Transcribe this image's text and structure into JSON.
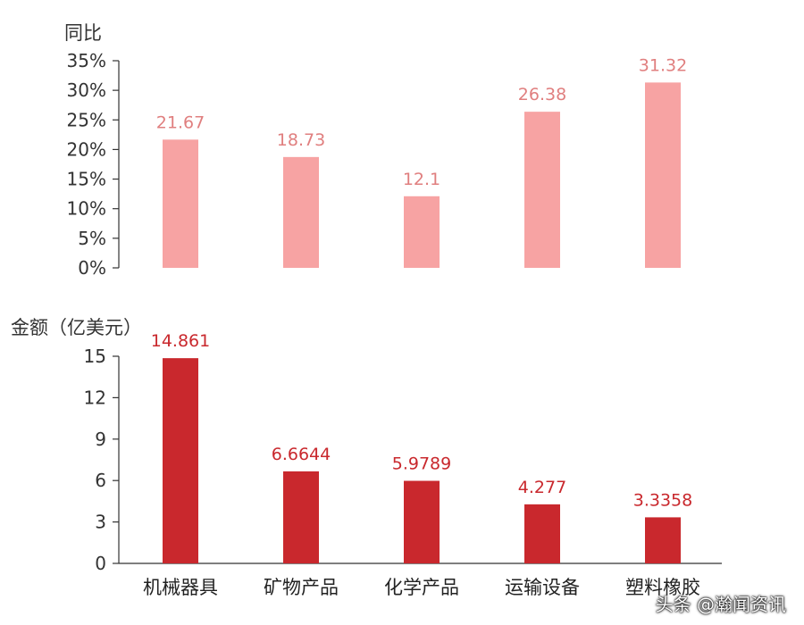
{
  "chart_data": [
    {
      "type": "bar",
      "ylabel": "同比",
      "categories": [
        "机械器具",
        "矿物产品",
        "化学产品",
        "运输设备",
        "塑料橡胶"
      ],
      "values": [
        21.67,
        18.73,
        12.1,
        26.38,
        31.32
      ],
      "value_labels": [
        "21.67",
        "18.73",
        "12.1",
        "26.38",
        "31.32"
      ],
      "ylim": [
        0,
        35
      ],
      "yticks": [
        "0%",
        "5%",
        "10%",
        "15%",
        "20%",
        "25%",
        "30%",
        "35%"
      ],
      "color": "#f7a3a3",
      "label_color": "#e07f7f",
      "grid": false
    },
    {
      "type": "bar",
      "ylabel": "金额（亿美元）",
      "categories": [
        "机械器具",
        "矿物产品",
        "化学产品",
        "运输设备",
        "塑料橡胶"
      ],
      "values": [
        14.861,
        6.6644,
        5.9789,
        4.277,
        3.3358
      ],
      "value_labels": [
        "14.861",
        "6.6644",
        "5.9789",
        "4.277",
        "3.3358"
      ],
      "ylim": [
        0,
        15
      ],
      "yticks": [
        "0",
        "3",
        "6",
        "9",
        "12",
        "15"
      ],
      "color": "#c9282d",
      "label_color": "#c9282d",
      "grid": false
    }
  ],
  "watermark": "头条 @瀚闻资讯"
}
